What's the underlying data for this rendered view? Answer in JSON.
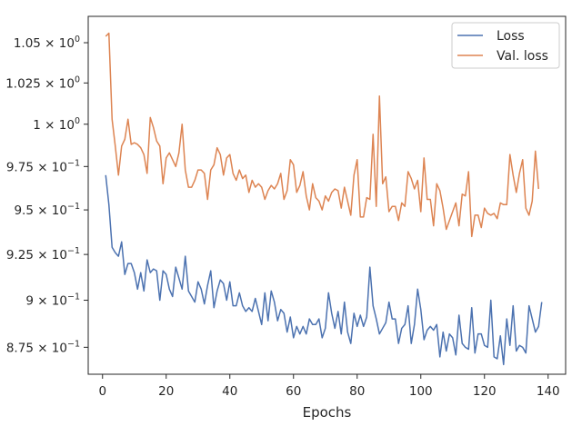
{
  "chart_data": {
    "type": "line",
    "xlabel": "Epochs",
    "ylabel": "",
    "yscale": "log",
    "xlim": [
      -4.5,
      145.5
    ],
    "ylim": [
      0.861,
      1.0667
    ],
    "grid": false,
    "legend_position": "top-right",
    "x_ticks": [
      0,
      20,
      40,
      60,
      80,
      100,
      120,
      140
    ],
    "x_tick_labels": [
      "0",
      "20",
      "40",
      "60",
      "80",
      "100",
      "120",
      "140"
    ],
    "y_ticks": [
      0.875,
      0.9,
      0.925,
      0.95,
      0.975,
      1.0,
      1.025,
      1.05
    ],
    "y_tick_labels": [
      {
        "mantissa": "8.75",
        "exponent": "−1"
      },
      {
        "mantissa": "9",
        "exponent": "−1"
      },
      {
        "mantissa": "9.25",
        "exponent": "−1"
      },
      {
        "mantissa": "9.5",
        "exponent": "−1"
      },
      {
        "mantissa": "9.75",
        "exponent": "−1"
      },
      {
        "mantissa": "1",
        "exponent": "0"
      },
      {
        "mantissa": "1.025",
        "exponent": "0"
      },
      {
        "mantissa": "1.05",
        "exponent": "0"
      }
    ],
    "series": [
      {
        "name": "Loss",
        "color": "#4c72b0",
        "x_start": 1,
        "x_step": 1,
        "values": [
          0.97,
          0.953,
          0.929,
          0.926,
          0.924,
          0.932,
          0.914,
          0.92,
          0.92,
          0.915,
          0.906,
          0.915,
          0.905,
          0.922,
          0.915,
          0.917,
          0.916,
          0.9,
          0.916,
          0.914,
          0.906,
          0.902,
          0.918,
          0.912,
          0.906,
          0.924,
          0.905,
          0.902,
          0.899,
          0.91,
          0.906,
          0.898,
          0.908,
          0.916,
          0.896,
          0.905,
          0.911,
          0.909,
          0.9,
          0.91,
          0.897,
          0.897,
          0.904,
          0.897,
          0.894,
          0.896,
          0.894,
          0.901,
          0.894,
          0.887,
          0.904,
          0.889,
          0.905,
          0.899,
          0.889,
          0.895,
          0.893,
          0.883,
          0.891,
          0.88,
          0.886,
          0.882,
          0.886,
          0.882,
          0.89,
          0.887,
          0.887,
          0.89,
          0.88,
          0.885,
          0.904,
          0.893,
          0.885,
          0.894,
          0.882,
          0.899,
          0.883,
          0.877,
          0.893,
          0.886,
          0.892,
          0.886,
          0.891,
          0.918,
          0.897,
          0.89,
          0.882,
          0.885,
          0.888,
          0.899,
          0.89,
          0.89,
          0.877,
          0.885,
          0.887,
          0.897,
          0.877,
          0.887,
          0.906,
          0.895,
          0.879,
          0.884,
          0.886,
          0.884,
          0.887,
          0.87,
          0.883,
          0.873,
          0.882,
          0.88,
          0.871,
          0.892,
          0.877,
          0.875,
          0.874,
          0.896,
          0.872,
          0.882,
          0.882,
          0.876,
          0.875,
          0.9,
          0.87,
          0.869,
          0.881,
          0.866,
          0.89,
          0.876,
          0.897,
          0.873,
          0.876,
          0.875,
          0.872,
          0.897,
          0.89,
          0.883,
          0.886,
          0.899
        ]
      },
      {
        "name": "Val. loss",
        "color": "#dd8452",
        "x_start": 1,
        "x_step": 1,
        "values": [
          1.054,
          1.056,
          1.003,
          0.987,
          0.97,
          0.987,
          0.991,
          1.003,
          0.988,
          0.989,
          0.988,
          0.986,
          0.982,
          0.971,
          1.004,
          0.998,
          0.99,
          0.987,
          0.965,
          0.98,
          0.983,
          0.979,
          0.975,
          0.983,
          1.0,
          0.973,
          0.963,
          0.963,
          0.967,
          0.973,
          0.973,
          0.971,
          0.956,
          0.973,
          0.976,
          0.986,
          0.982,
          0.97,
          0.98,
          0.982,
          0.971,
          0.967,
          0.973,
          0.968,
          0.97,
          0.96,
          0.967,
          0.963,
          0.965,
          0.963,
          0.956,
          0.961,
          0.964,
          0.962,
          0.965,
          0.971,
          0.956,
          0.961,
          0.979,
          0.976,
          0.96,
          0.964,
          0.972,
          0.958,
          0.95,
          0.965,
          0.957,
          0.955,
          0.95,
          0.958,
          0.955,
          0.96,
          0.962,
          0.961,
          0.951,
          0.963,
          0.955,
          0.947,
          0.97,
          0.979,
          0.946,
          0.946,
          0.957,
          0.956,
          0.994,
          0.952,
          1.017,
          0.965,
          0.969,
          0.949,
          0.952,
          0.952,
          0.944,
          0.954,
          0.952,
          0.972,
          0.968,
          0.962,
          0.967,
          0.949,
          0.98,
          0.956,
          0.956,
          0.941,
          0.965,
          0.961,
          0.951,
          0.939,
          0.944,
          0.949,
          0.954,
          0.941,
          0.959,
          0.958,
          0.972,
          0.935,
          0.947,
          0.947,
          0.94,
          0.951,
          0.948,
          0.947,
          0.948,
          0.945,
          0.954,
          0.953,
          0.953,
          0.982,
          0.97,
          0.96,
          0.971,
          0.979,
          0.951,
          0.947,
          0.955,
          0.984,
          0.962
        ]
      }
    ]
  }
}
